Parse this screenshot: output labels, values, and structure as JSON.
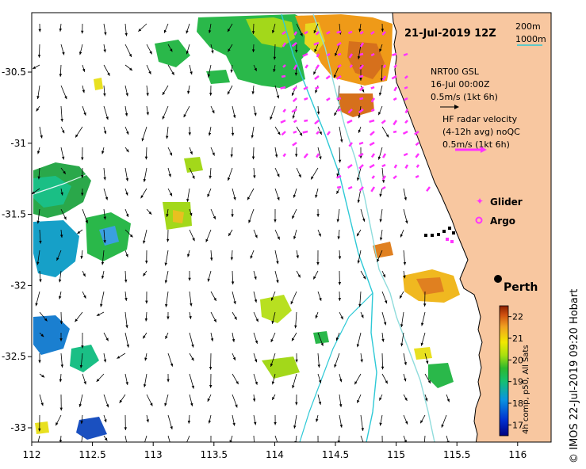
{
  "map": {
    "date_label": "21-Jul-2019 12Z",
    "city": "Perth",
    "depth_legend": [
      "200m",
      "1000m"
    ],
    "nrt_block": [
      "NRT00 GSL",
      "16-Jul 00:00Z",
      "0.5m/s (1kt 6h)"
    ],
    "hf_block": [
      "HF radar velocity",
      "(4-12h avg) noQC",
      "0.5m/s (1kt 6h)"
    ],
    "legend": {
      "glider": "Glider",
      "argo": "Argo"
    },
    "credit": "© IMOS 22-Jul-2019 09:20 Hobart",
    "colorbar": {
      "title": "4h comp, p50, All Sats",
      "min": 16.5,
      "max": 22.5,
      "ticks": [
        "17",
        "18",
        "19",
        "20",
        "21",
        "22"
      ]
    },
    "axes": {
      "x_ticks": [
        "112",
        "112.5",
        "113",
        "113.5",
        "114",
        "114.5",
        "115",
        "115.5",
        "116"
      ],
      "y_ticks": [
        "-30.5",
        "-31",
        "-31.5",
        "-32",
        "-32.5",
        "-33"
      ]
    },
    "colors": {
      "land": "#f8c7a0",
      "isobath_200": "#8fdcdc",
      "isobath_1000": "#2ec9d6",
      "hf_arrow": "#ff33ff",
      "current_arrow": "#000000"
    }
  }
}
